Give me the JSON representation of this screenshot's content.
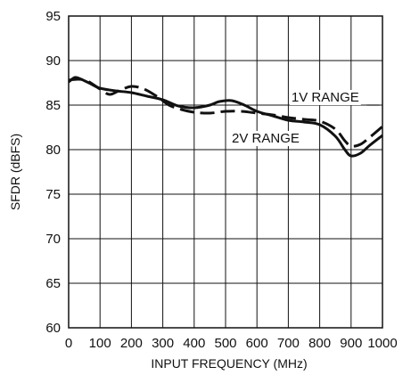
{
  "chart_data": {
    "type": "line",
    "title": "",
    "xlabel": "INPUT FREQUENCY (MHz)",
    "ylabel": "SFDR (dBFS)",
    "xlim": [
      0,
      1000
    ],
    "ylim": [
      60,
      95
    ],
    "xticks": [
      0,
      100,
      200,
      300,
      400,
      500,
      600,
      700,
      800,
      900,
      1000
    ],
    "yticks": [
      60,
      65,
      70,
      75,
      80,
      85,
      90,
      95
    ],
    "xtick_labels": [
      "0",
      "100",
      "200",
      "300",
      "400",
      "500",
      "600",
      "700",
      "800",
      "900",
      "1000"
    ],
    "ytick_labels": [
      "60",
      "65",
      "70",
      "75",
      "80",
      "85",
      "90",
      "95"
    ],
    "grid": true,
    "legend": "none",
    "series": [
      {
        "name": "1V RANGE",
        "style": "dashed",
        "x": [
          0,
          30,
          60,
          100,
          130,
          160,
          200,
          240,
          280,
          320,
          360,
          400,
          450,
          500,
          550,
          600,
          650,
          700,
          750,
          800,
          850,
          880,
          900,
          930,
          960,
          1000
        ],
        "y": [
          87.8,
          87.9,
          87.7,
          86.8,
          86.2,
          86.6,
          87.1,
          86.8,
          86.0,
          85.0,
          84.5,
          84.2,
          84.1,
          84.3,
          84.3,
          84.1,
          83.9,
          83.6,
          83.4,
          83.2,
          82.3,
          81.0,
          80.4,
          80.6,
          81.4,
          82.6
        ]
      },
      {
        "name": "2V RANGE",
        "style": "solid",
        "x": [
          0,
          20,
          40,
          70,
          100,
          150,
          200,
          250,
          300,
          350,
          400,
          450,
          480,
          520,
          560,
          600,
          650,
          700,
          750,
          800,
          850,
          880,
          900,
          930,
          960,
          1000
        ],
        "y": [
          87.6,
          88.1,
          87.9,
          87.4,
          86.9,
          86.6,
          86.4,
          86.0,
          85.6,
          84.9,
          84.7,
          85.0,
          85.4,
          85.5,
          85.0,
          84.3,
          83.8,
          83.3,
          83.1,
          82.8,
          81.5,
          80.0,
          79.3,
          79.6,
          80.5,
          81.6
        ]
      }
    ],
    "annotations": [
      {
        "text": "1V RANGE",
        "series": 0
      },
      {
        "text": "2V RANGE",
        "series": 1
      }
    ]
  }
}
